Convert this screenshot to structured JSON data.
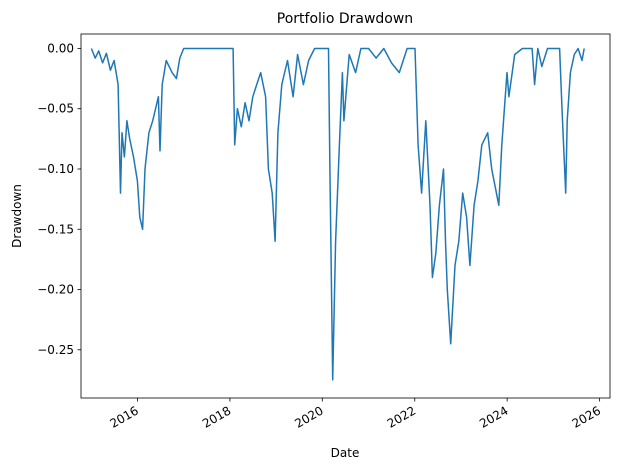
{
  "chart_data": {
    "type": "line",
    "title": "Portfolio Drawdown",
    "xlabel": "Date",
    "ylabel": "Drawdown",
    "x_axis_type": "date",
    "xlim": [
      "2014-10-12",
      "2026-03-24"
    ],
    "ylim": [
      -0.29,
      0.012
    ],
    "x_ticks": [
      "2016",
      "2018",
      "2020",
      "2022",
      "2024",
      "2026"
    ],
    "y_ticks": [
      "0.00",
      "−0.05",
      "−0.10",
      "−0.15",
      "−0.20",
      "−0.25"
    ],
    "grid": false,
    "legend": "none",
    "series": [
      {
        "color": "#1f77b4",
        "x": [
          "2015-01-02",
          "2015-02-01",
          "2015-03-01",
          "2015-04-01",
          "2015-05-01",
          "2015-06-01",
          "2015-07-01",
          "2015-08-01",
          "2015-08-20",
          "2015-09-01",
          "2015-09-20",
          "2015-10-10",
          "2015-11-01",
          "2015-12-01",
          "2016-01-01",
          "2016-01-20",
          "2016-02-11",
          "2016-03-01",
          "2016-04-01",
          "2016-05-01",
          "2016-06-15",
          "2016-06-27",
          "2016-07-15",
          "2016-08-15",
          "2016-10-01",
          "2016-11-04",
          "2016-12-01",
          "2017-01-01",
          "2017-03-01",
          "2017-06-01",
          "2017-09-01",
          "2017-12-01",
          "2018-01-26",
          "2018-02-08",
          "2018-03-01",
          "2018-04-01",
          "2018-05-01",
          "2018-06-01",
          "2018-07-01",
          "2018-08-01",
          "2018-09-01",
          "2018-10-10",
          "2018-11-01",
          "2018-12-01",
          "2018-12-24",
          "2019-01-15",
          "2019-02-15",
          "2019-04-01",
          "2019-05-15",
          "2019-06-20",
          "2019-08-05",
          "2019-09-15",
          "2019-11-01",
          "2020-01-01",
          "2020-02-19",
          "2020-03-01",
          "2020-03-23",
          "2020-04-15",
          "2020-05-15",
          "2020-06-08",
          "2020-06-20",
          "2020-08-01",
          "2020-09-20",
          "2020-11-01",
          "2021-01-01",
          "2021-03-01",
          "2021-05-01",
          "2021-07-01",
          "2021-09-01",
          "2021-11-01",
          "2022-01-03",
          "2022-01-27",
          "2022-02-24",
          "2022-03-29",
          "2022-05-01",
          "2022-05-20",
          "2022-06-16",
          "2022-07-15",
          "2022-08-16",
          "2022-09-01",
          "2022-09-15",
          "2022-10-12",
          "2022-11-15",
          "2022-12-15",
          "2023-01-15",
          "2023-02-15",
          "2023-03-13",
          "2023-04-15",
          "2023-05-15",
          "2023-06-15",
          "2023-07-31",
          "2023-09-01",
          "2023-10-27",
          "2023-11-20",
          "2023-12-31",
          "2024-01-15",
          "2024-03-01",
          "2024-05-01",
          "2024-07-16",
          "2024-08-05",
          "2024-08-30",
          "2024-10-01",
          "2024-11-15",
          "2025-01-01",
          "2025-02-19",
          "2025-03-10",
          "2025-04-08",
          "2025-04-20",
          "2025-05-15",
          "2025-06-15",
          "2025-07-15",
          "2025-08-15",
          "2025-09-01"
        ],
        "y": [
          0.0,
          -0.008,
          -0.002,
          -0.012,
          -0.004,
          -0.018,
          -0.01,
          -0.03,
          -0.12,
          -0.07,
          -0.09,
          -0.06,
          -0.075,
          -0.09,
          -0.11,
          -0.14,
          -0.15,
          -0.1,
          -0.07,
          -0.06,
          -0.04,
          -0.085,
          -0.03,
          -0.01,
          -0.02,
          -0.025,
          -0.008,
          0.0,
          0.0,
          0.0,
          0.0,
          0.0,
          0.0,
          -0.08,
          -0.05,
          -0.065,
          -0.045,
          -0.06,
          -0.04,
          -0.03,
          -0.02,
          -0.04,
          -0.1,
          -0.12,
          -0.16,
          -0.07,
          -0.03,
          -0.01,
          -0.04,
          -0.005,
          -0.03,
          -0.01,
          0.0,
          0.0,
          0.0,
          -0.1,
          -0.275,
          -0.16,
          -0.08,
          -0.02,
          -0.06,
          -0.005,
          -0.02,
          0.0,
          0.0,
          -0.008,
          0.0,
          -0.012,
          -0.02,
          0.0,
          0.0,
          -0.08,
          -0.12,
          -0.06,
          -0.13,
          -0.19,
          -0.17,
          -0.13,
          -0.1,
          -0.16,
          -0.2,
          -0.245,
          -0.18,
          -0.16,
          -0.12,
          -0.14,
          -0.18,
          -0.13,
          -0.11,
          -0.08,
          -0.07,
          -0.1,
          -0.13,
          -0.08,
          -0.02,
          -0.04,
          -0.005,
          0.0,
          0.0,
          -0.03,
          0.0,
          -0.015,
          0.0,
          0.0,
          0.0,
          -0.05,
          -0.12,
          -0.06,
          -0.02,
          -0.005,
          0.0,
          -0.01,
          0.0
        ]
      }
    ]
  }
}
